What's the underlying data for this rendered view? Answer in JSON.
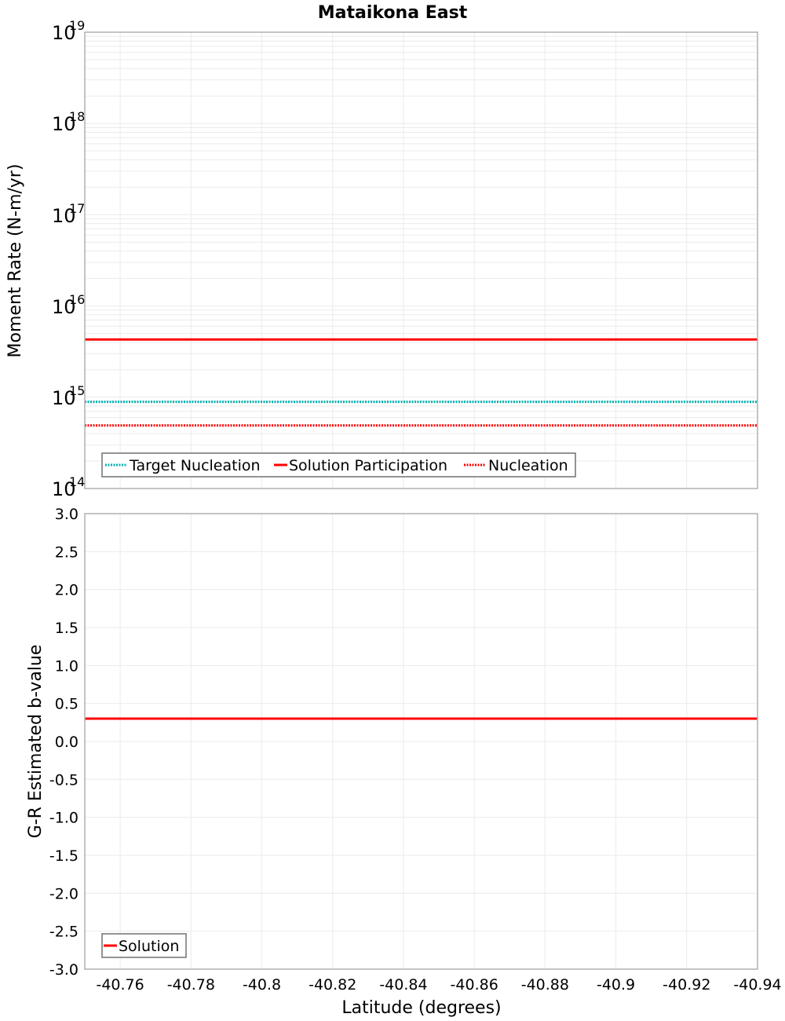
{
  "title": "Mataikona East",
  "chart_data": [
    {
      "type": "line",
      "panel": "top",
      "title": "Mataikona East",
      "xlabel": "Latitude (degrees)",
      "ylabel": "Moment Rate (N-m/yr)",
      "yscale": "log",
      "ylim": [
        100000000000000.0,
        1e+19
      ],
      "xlim": [
        -40.75,
        -40.94
      ],
      "x_reversed": true,
      "grid": true,
      "y_tick_labels": [
        {
          "base": "10",
          "exp": "19"
        },
        {
          "base": "10",
          "exp": "18"
        },
        {
          "base": "10",
          "exp": "17"
        },
        {
          "base": "10",
          "exp": "16"
        },
        {
          "base": "10",
          "exp": "15"
        },
        {
          "base": "10",
          "exp": "14"
        }
      ],
      "legend_position": "lower-left",
      "series": [
        {
          "name": "Target Nucleation",
          "style": "dotted",
          "color": "#00b2b2",
          "x": [
            -40.75,
            -40.94
          ],
          "values": [
            890000000000000.0,
            890000000000000.0
          ]
        },
        {
          "name": "Solution Participation",
          "style": "solid",
          "color": "#ff0000",
          "x": [
            -40.75,
            -40.94
          ],
          "values": [
            4300000000000000.0,
            4300000000000000.0
          ]
        },
        {
          "name": "Nucleation",
          "style": "dotted",
          "color": "#ff0000",
          "x": [
            -40.75,
            -40.94
          ],
          "values": [
            490000000000000.0,
            490000000000000.0
          ]
        }
      ]
    },
    {
      "type": "line",
      "panel": "bottom",
      "xlabel": "Latitude (degrees)",
      "ylabel": "G-R Estimated b-value",
      "ylim": [
        -3.0,
        3.0
      ],
      "xlim": [
        -40.75,
        -40.94
      ],
      "x_reversed": true,
      "grid": true,
      "y_tick_labels": [
        "3.0",
        "2.5",
        "2.0",
        "1.5",
        "1.0",
        "0.5",
        "0.0",
        "-0.5",
        "-1.0",
        "-1.5",
        "-2.0",
        "-2.5",
        "-3.0"
      ],
      "x_tick_labels": [
        "-40.76",
        "-40.78",
        "-40.8",
        "-40.82",
        "-40.84",
        "-40.86",
        "-40.88",
        "-40.9",
        "-40.92",
        "-40.94"
      ],
      "legend_position": "lower-left",
      "series": [
        {
          "name": "Solution",
          "style": "solid",
          "color": "#ff0000",
          "x": [
            -40.75,
            -40.94
          ],
          "values": [
            0.3,
            0.3
          ]
        }
      ]
    }
  ],
  "top": {
    "ylabel": "Moment Rate (N-m/yr)",
    "ticks": [
      {
        "base": "10",
        "exp": "19"
      },
      {
        "base": "10",
        "exp": "18"
      },
      {
        "base": "10",
        "exp": "17"
      },
      {
        "base": "10",
        "exp": "16"
      },
      {
        "base": "10",
        "exp": "15"
      },
      {
        "base": "10",
        "exp": "14"
      }
    ],
    "legend": [
      "Target Nucleation",
      "Solution Participation",
      "Nucleation"
    ]
  },
  "bottom": {
    "ylabel": "G-R Estimated b-value",
    "yticks": [
      "3.0",
      "2.5",
      "2.0",
      "1.5",
      "1.0",
      "0.5",
      "0.0",
      "-0.5",
      "-1.0",
      "-1.5",
      "-2.0",
      "-2.5",
      "-3.0"
    ],
    "xticks": [
      "-40.76",
      "-40.78",
      "-40.8",
      "-40.82",
      "-40.84",
      "-40.86",
      "-40.88",
      "-40.9",
      "-40.92",
      "-40.94"
    ],
    "xlabel": "Latitude (degrees)",
    "legend": [
      "Solution"
    ]
  },
  "colors": {
    "teal": "#00b2b2",
    "red": "#ff0000",
    "grid": "#ebebeb",
    "frame": "#b0b0b0",
    "legend_border": "#707070"
  }
}
